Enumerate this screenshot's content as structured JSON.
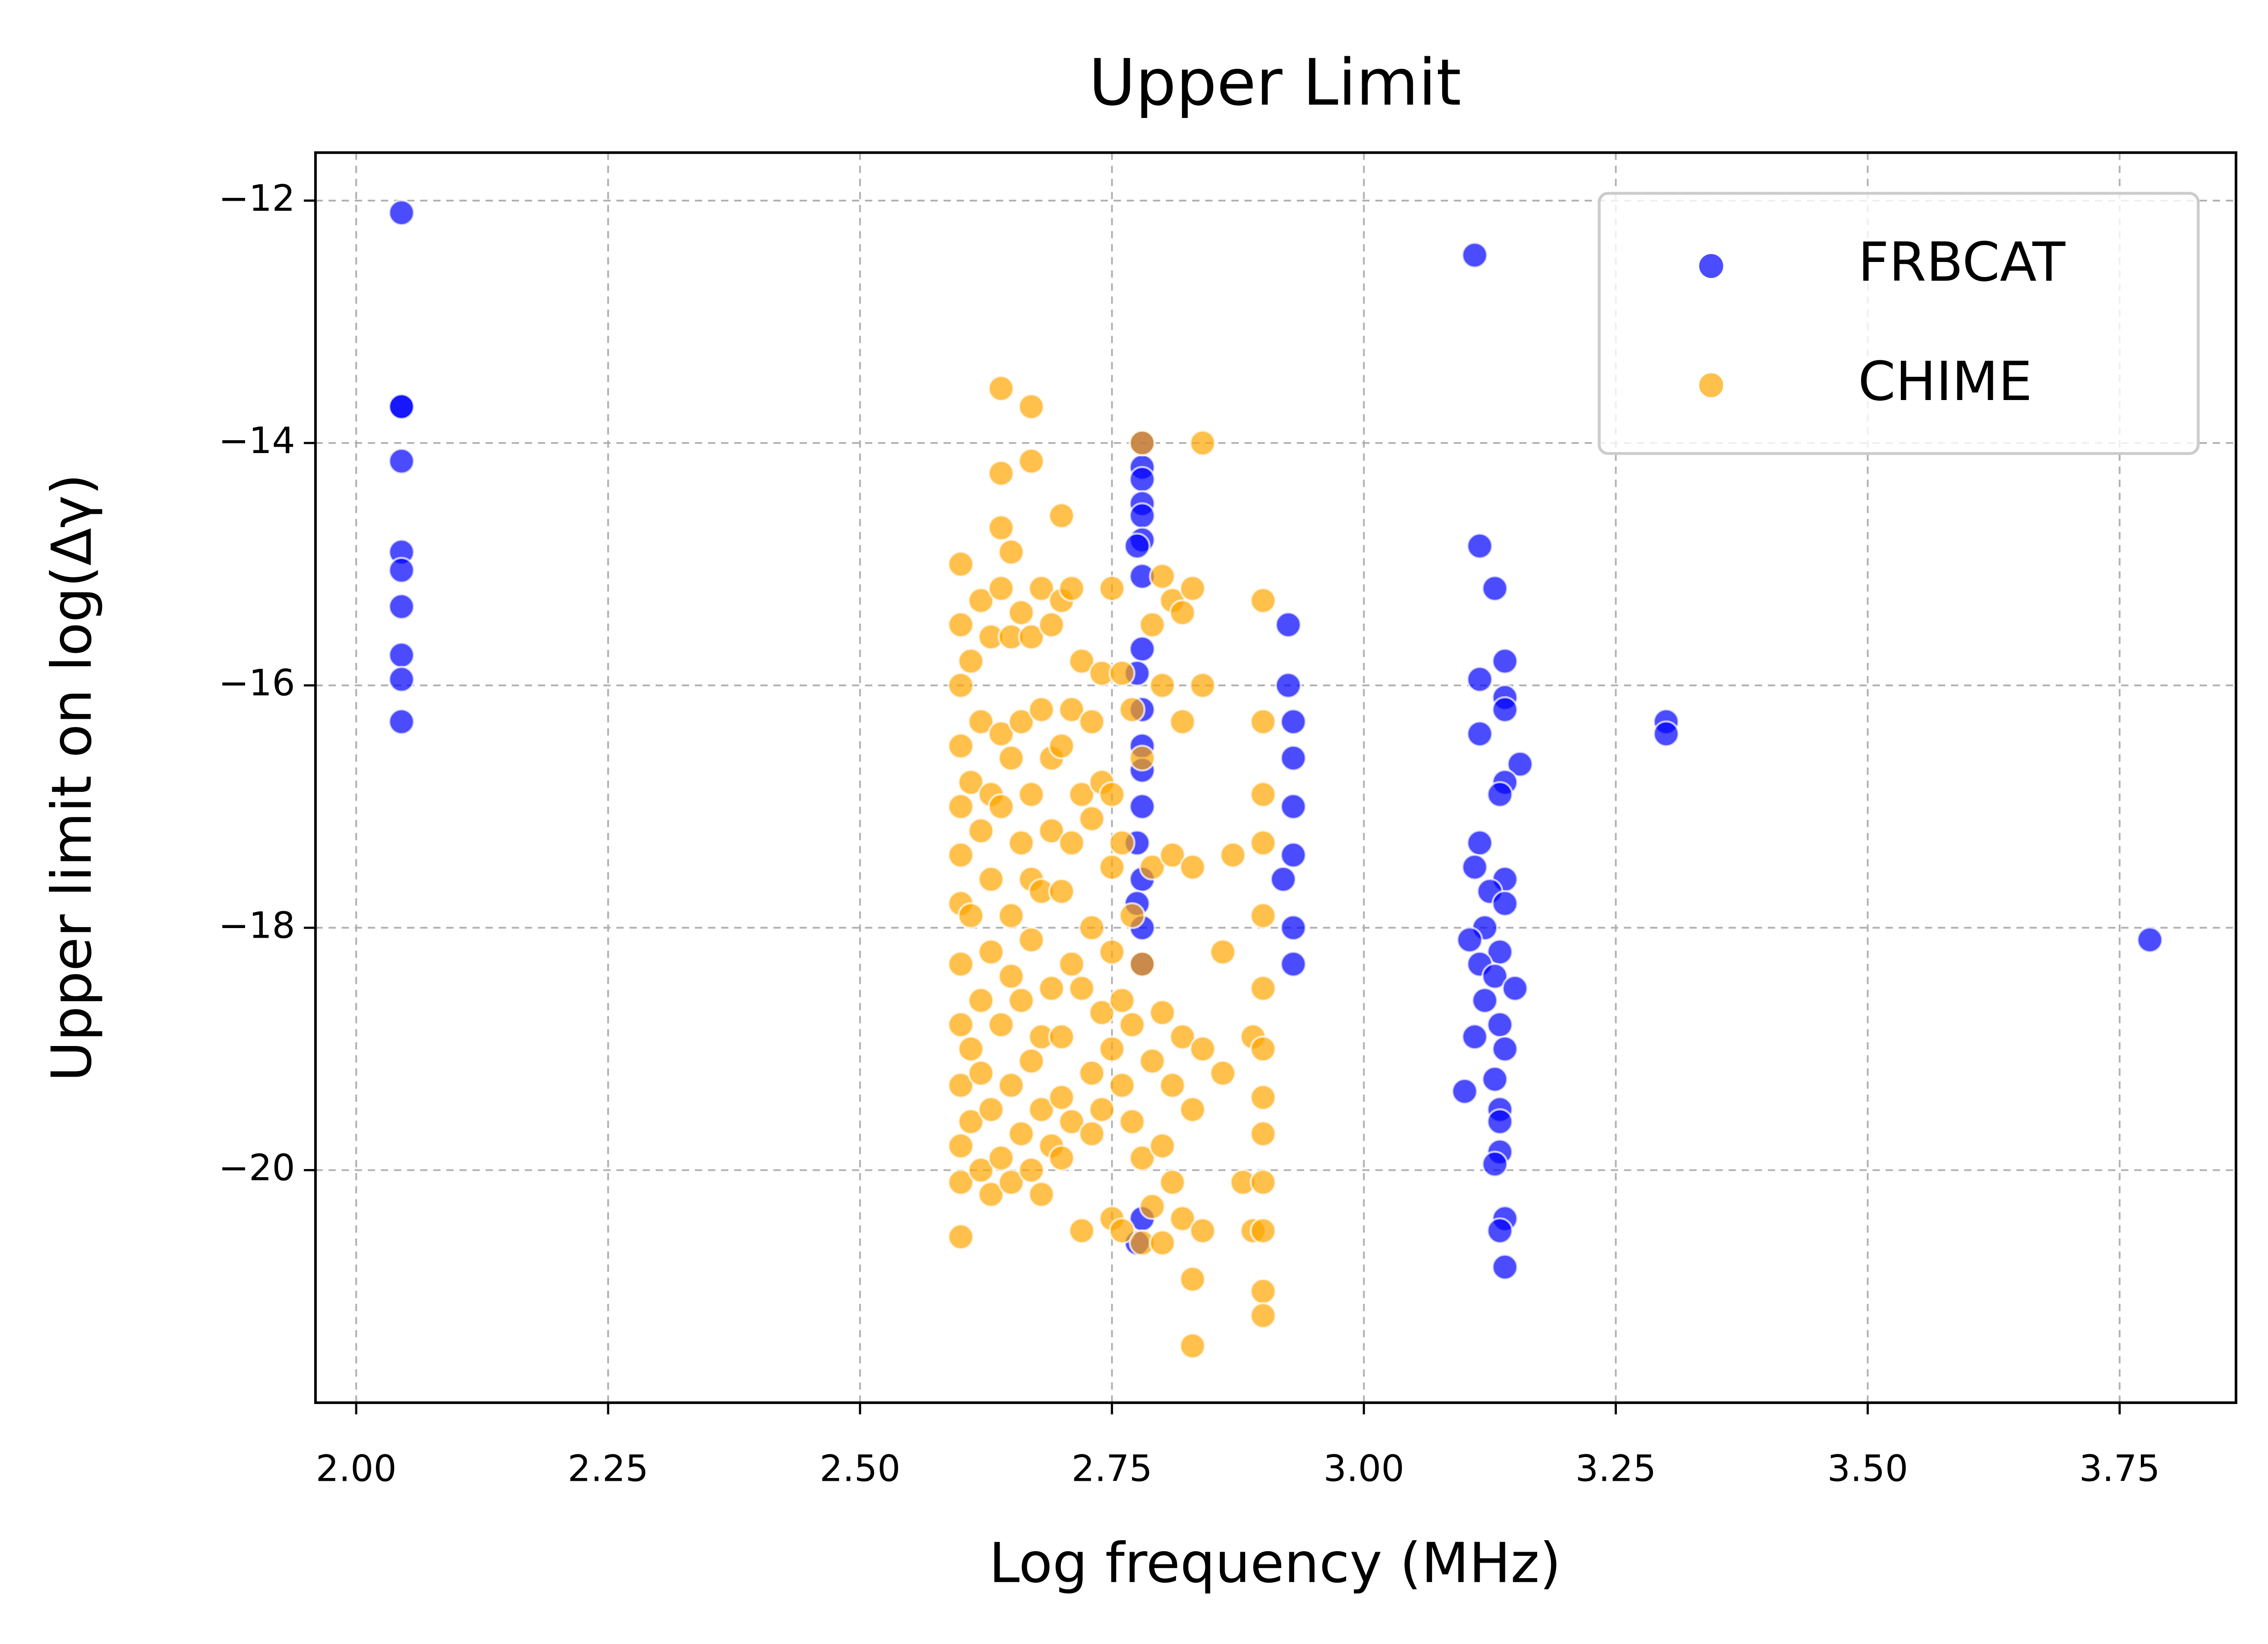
{
  "chart_data": {
    "type": "scatter",
    "title": "Upper Limit",
    "x_label": "Log frequency (MHz)",
    "y_label": "Upper limit on log(Δγ)",
    "xlim": [
      1.9596,
      3.8655
    ],
    "ylim": [
      -21.919,
      -11.604
    ],
    "xticks": [
      {
        "value": 2,
        "label": "2.00"
      },
      {
        "value": 2.25,
        "label": "2.25"
      },
      {
        "value": 2.5,
        "label": "2.50"
      },
      {
        "value": 2.75,
        "label": "2.75"
      },
      {
        "value": 3,
        "label": "3.00"
      },
      {
        "value": 3.25,
        "label": "3.25"
      },
      {
        "value": 3.5,
        "label": "3.50"
      },
      {
        "value": 3.75,
        "label": "3.75"
      }
    ],
    "yticks": [
      {
        "value": -20,
        "label": "−20"
      },
      {
        "value": -18,
        "label": "−18"
      },
      {
        "value": -16,
        "label": "−16"
      },
      {
        "value": -14,
        "label": "−14"
      },
      {
        "value": -12,
        "label": "−12"
      }
    ],
    "grid": true,
    "legend": "upper right",
    "series": [
      {
        "name": "FRBCAT",
        "color": "#0000ff",
        "x": [
          2.045,
          2.045,
          2.045,
          2.045,
          2.045,
          2.045,
          2.045,
          2.045,
          2.045,
          2.045,
          2.78,
          2.78,
          2.78,
          2.78,
          2.78,
          2.78,
          2.775,
          2.78,
          2.78,
          2.775,
          2.78,
          2.78,
          2.78,
          2.78,
          2.775,
          2.78,
          2.775,
          2.78,
          2.78,
          2.775,
          2.78,
          2.925,
          2.925,
          2.93,
          2.93,
          2.93,
          2.93,
          2.92,
          2.93,
          2.93,
          3.11,
          3.115,
          3.13,
          3.14,
          3.115,
          3.14,
          3.14,
          3.115,
          3.155,
          3.14,
          3.135,
          3.115,
          3.11,
          3.14,
          3.125,
          3.14,
          3.12,
          3.105,
          3.135,
          3.115,
          3.13,
          3.15,
          3.12,
          3.135,
          3.11,
          3.14,
          3.13,
          3.1,
          3.135,
          3.135,
          3.135,
          3.13,
          3.14,
          3.135,
          3.14,
          3.3,
          3.3,
          3.78
        ],
        "y": [
          -12.1,
          -13.7,
          -13.7,
          -14.15,
          -14.9,
          -15.05,
          -15.35,
          -15.75,
          -15.95,
          -16.3,
          -14.0,
          -14.2,
          -14.3,
          -14.5,
          -14.6,
          -14.8,
          -14.85,
          -15.1,
          -15.7,
          -15.9,
          -16.2,
          -16.5,
          -16.7,
          -17.0,
          -17.3,
          -17.6,
          -17.8,
          -18.0,
          -18.3,
          -20.6,
          -20.4,
          -15.5,
          -16.0,
          -16.3,
          -16.6,
          -17.0,
          -17.4,
          -17.6,
          -18.0,
          -18.3,
          -12.45,
          -14.85,
          -15.2,
          -15.8,
          -15.95,
          -16.1,
          -16.2,
          -16.4,
          -16.65,
          -16.8,
          -16.9,
          -17.3,
          -17.5,
          -17.6,
          -17.7,
          -17.8,
          -18.0,
          -18.1,
          -18.2,
          -18.3,
          -18.4,
          -18.5,
          -18.6,
          -18.8,
          -18.9,
          -19.0,
          -19.25,
          -19.35,
          -19.5,
          -19.6,
          -19.85,
          -19.95,
          -20.4,
          -20.5,
          -20.8,
          -16.3,
          -16.4,
          -18.1
        ]
      },
      {
        "name": "CHIME",
        "color": "#ffa500",
        "x": [
          2.6,
          2.6,
          2.6,
          2.6,
          2.6,
          2.6,
          2.6,
          2.6,
          2.6,
          2.6,
          2.6,
          2.6,
          2.6,
          2.61,
          2.61,
          2.61,
          2.61,
          2.61,
          2.62,
          2.62,
          2.62,
          2.62,
          2.62,
          2.62,
          2.63,
          2.63,
          2.63,
          2.63,
          2.63,
          2.63,
          2.64,
          2.64,
          2.64,
          2.64,
          2.64,
          2.64,
          2.64,
          2.64,
          2.65,
          2.65,
          2.65,
          2.65,
          2.65,
          2.65,
          2.65,
          2.66,
          2.66,
          2.66,
          2.66,
          2.66,
          2.67,
          2.67,
          2.67,
          2.67,
          2.67,
          2.67,
          2.67,
          2.67,
          2.68,
          2.68,
          2.68,
          2.68,
          2.68,
          2.68,
          2.69,
          2.69,
          2.69,
          2.69,
          2.69,
          2.7,
          2.7,
          2.7,
          2.7,
          2.7,
          2.7,
          2.7,
          2.71,
          2.71,
          2.71,
          2.71,
          2.71,
          2.72,
          2.72,
          2.72,
          2.72,
          2.73,
          2.73,
          2.73,
          2.73,
          2.73,
          2.74,
          2.74,
          2.74,
          2.74,
          2.75,
          2.75,
          2.75,
          2.75,
          2.75,
          2.75,
          2.76,
          2.76,
          2.76,
          2.76,
          2.76,
          2.77,
          2.77,
          2.77,
          2.77,
          2.78,
          2.78,
          2.78,
          2.78,
          2.78,
          2.79,
          2.79,
          2.79,
          2.79,
          2.8,
          2.8,
          2.8,
          2.8,
          2.8,
          2.81,
          2.81,
          2.81,
          2.81,
          2.82,
          2.82,
          2.82,
          2.82,
          2.83,
          2.83,
          2.83,
          2.83,
          2.83,
          2.84,
          2.84,
          2.84,
          2.84,
          2.86,
          2.86,
          2.87,
          2.88,
          2.89,
          2.89,
          2.9,
          2.9,
          2.9,
          2.9,
          2.9,
          2.9,
          2.9,
          2.9,
          2.9,
          2.9,
          2.9,
          2.9,
          2.9
        ],
        "y": [
          -15.0,
          -15.5,
          -16.0,
          -16.5,
          -17.0,
          -17.4,
          -17.8,
          -18.3,
          -18.8,
          -19.3,
          -19.8,
          -20.1,
          -20.55,
          -15.8,
          -16.8,
          -17.9,
          -19.0,
          -19.6,
          -15.3,
          -16.3,
          -17.2,
          -18.6,
          -19.2,
          -20.0,
          -15.6,
          -16.9,
          -17.6,
          -18.2,
          -19.5,
          -20.2,
          -13.55,
          -14.25,
          -14.7,
          -15.2,
          -16.4,
          -17.0,
          -18.8,
          -19.9,
          -14.9,
          -15.6,
          -16.6,
          -17.9,
          -18.4,
          -19.3,
          -20.1,
          -15.4,
          -16.3,
          -17.3,
          -18.6,
          -19.7,
          -13.7,
          -14.15,
          -15.6,
          -16.9,
          -17.6,
          -18.1,
          -19.1,
          -20.0,
          -15.2,
          -16.2,
          -17.7,
          -18.9,
          -19.5,
          -20.2,
          -15.5,
          -16.6,
          -17.2,
          -18.5,
          -19.8,
          -14.6,
          -15.3,
          -16.5,
          -17.7,
          -18.9,
          -19.4,
          -19.9,
          -15.2,
          -16.2,
          -17.3,
          -18.3,
          -19.6,
          -15.8,
          -16.9,
          -18.5,
          -20.5,
          -16.3,
          -17.1,
          -18.0,
          -19.2,
          -19.7,
          -15.9,
          -16.8,
          -18.7,
          -19.5,
          -15.2,
          -16.9,
          -17.5,
          -18.2,
          -19.0,
          -20.4,
          -15.9,
          -17.3,
          -18.6,
          -19.3,
          -20.5,
          -16.2,
          -17.9,
          -18.8,
          -19.6,
          -14.0,
          -16.6,
          -18.3,
          -19.9,
          -20.6,
          -15.5,
          -17.5,
          -19.1,
          -20.3,
          -15.1,
          -16.0,
          -18.7,
          -19.8,
          -20.6,
          -15.3,
          -17.4,
          -19.3,
          -20.1,
          -15.4,
          -16.3,
          -18.9,
          -20.4,
          -15.2,
          -17.5,
          -19.5,
          -20.9,
          -21.45,
          -14.0,
          -16.0,
          -19.0,
          -20.5,
          -18.2,
          -19.2,
          -17.4,
          -20.1,
          -20.5,
          -18.9,
          -15.3,
          -16.3,
          -16.9,
          -17.3,
          -17.9,
          -18.5,
          -19.0,
          -19.4,
          -19.7,
          -20.1,
          -20.5,
          -21.0,
          -21.2
        ]
      }
    ]
  }
}
